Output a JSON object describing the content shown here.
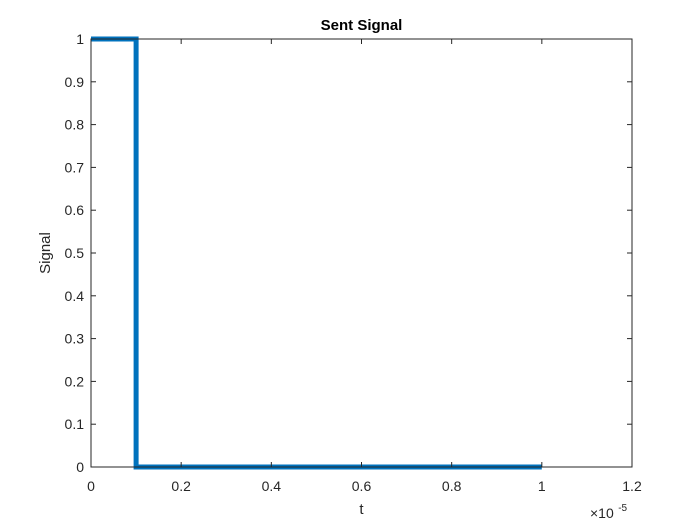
{
  "chart_data": {
    "type": "line",
    "title": "Sent Signal",
    "xlabel": "t",
    "ylabel": "Signal",
    "x_exponent": {
      "base": "×10",
      "power": "-5"
    },
    "xlim": [
      0,
      1.2
    ],
    "ylim": [
      0,
      1
    ],
    "xticks": [
      0,
      0.2,
      0.4,
      0.6,
      0.8,
      1,
      1.2
    ],
    "xtick_labels": [
      "0",
      "0.2",
      "0.4",
      "0.6",
      "0.8",
      "1",
      "1.2"
    ],
    "yticks": [
      0,
      0.1,
      0.2,
      0.3,
      0.4,
      0.5,
      0.6,
      0.7,
      0.8,
      0.9,
      1
    ],
    "ytick_labels": [
      "0",
      "0.1",
      "0.2",
      "0.3",
      "0.4",
      "0.5",
      "0.6",
      "0.7",
      "0.8",
      "0.9",
      "1"
    ],
    "grid": false,
    "series": [
      {
        "color": "#0072BD",
        "x": [
          0,
          0.1,
          0.1,
          1
        ],
        "y": [
          1,
          1,
          0,
          0
        ]
      }
    ]
  }
}
